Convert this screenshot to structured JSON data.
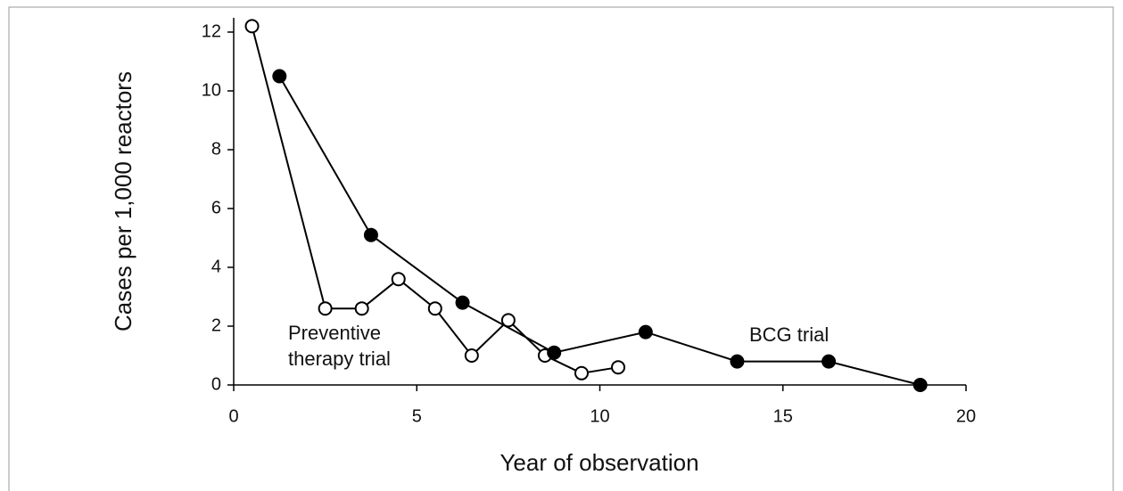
{
  "chart_data": {
    "type": "line",
    "xlabel": "Year of observation",
    "ylabel": "Cases per 1,000 reactors",
    "xlim": [
      0,
      20
    ],
    "xticks": [
      0,
      5,
      10,
      15,
      20
    ],
    "ylim": [
      0,
      12
    ],
    "yticks": [
      0,
      2,
      4,
      6,
      8,
      10,
      12
    ],
    "series": [
      {
        "name": "Preventive therapy trial",
        "color": "#000000",
        "marker": "open",
        "x": [
          0.5,
          2.5,
          3.5,
          4.5,
          5.5,
          6.5,
          7.5,
          8.5,
          9.5,
          10.5
        ],
        "values": [
          12.2,
          2.6,
          2.6,
          3.6,
          2.6,
          1.0,
          2.2,
          1.0,
          0.4,
          0.6
        ]
      },
      {
        "name": "BCG trial",
        "color": "#000000",
        "marker": "filled",
        "x": [
          1.25,
          3.75,
          6.25,
          8.75,
          11.25,
          13.75,
          16.25,
          18.75
        ],
        "values": [
          10.5,
          5.1,
          2.8,
          1.1,
          1.8,
          0.8,
          0.8,
          0.0
        ]
      }
    ]
  }
}
